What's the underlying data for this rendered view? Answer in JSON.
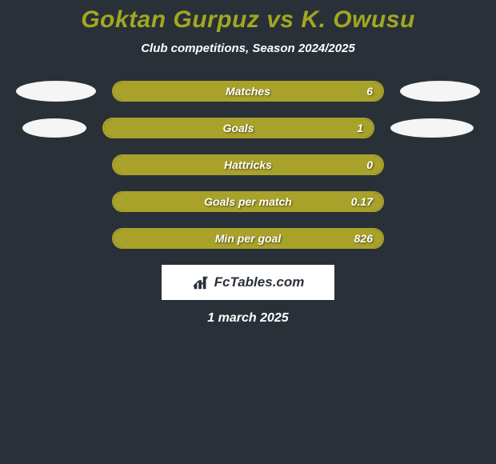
{
  "title": "Goktan Gurpuz vs K. Owusu",
  "subtitle": "Club competitions, Season 2024/2025",
  "bar_color": "#a9a22a",
  "bar_border": "#a9a22a",
  "background_color": "#2a3038",
  "title_color": "#a0a820",
  "text_color": "#ffffff",
  "rows": [
    {
      "label": "Matches",
      "value": "6",
      "fill_percent": 100,
      "left_ellipse": {
        "w": 100,
        "h": 26
      },
      "right_ellipse": {
        "w": 100,
        "h": 26
      }
    },
    {
      "label": "Goals",
      "value": "1",
      "fill_percent": 100,
      "left_ellipse": {
        "w": 80,
        "h": 24
      },
      "right_ellipse": {
        "w": 104,
        "h": 24
      }
    },
    {
      "label": "Hattricks",
      "value": "0",
      "fill_percent": 100,
      "left_ellipse": null,
      "right_ellipse": null
    },
    {
      "label": "Goals per match",
      "value": "0.17",
      "fill_percent": 100,
      "left_ellipse": null,
      "right_ellipse": null
    },
    {
      "label": "Min per goal",
      "value": "826",
      "fill_percent": 100,
      "left_ellipse": null,
      "right_ellipse": null
    }
  ],
  "brand": "FcTables.com",
  "footer_date": "1 march 2025"
}
